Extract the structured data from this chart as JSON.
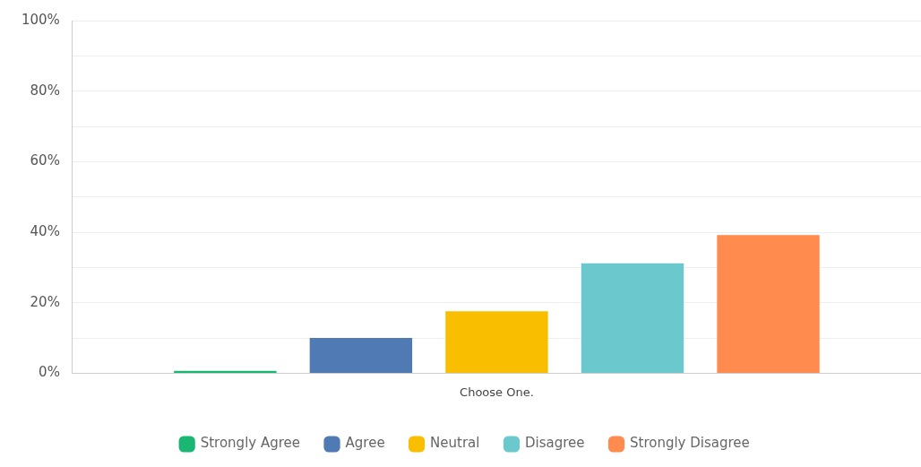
{
  "chart_data": {
    "type": "bar",
    "categories": [
      "Choose One."
    ],
    "series": [
      {
        "name": "Strongly Agree",
        "color": "#19b772",
        "values": [
          0.7
        ]
      },
      {
        "name": "Agree",
        "color": "#4f7ab3",
        "values": [
          10
        ]
      },
      {
        "name": "Neutral",
        "color": "#f9be00",
        "values": [
          17.6
        ]
      },
      {
        "name": "Disagree",
        "color": "#6bc8cd",
        "values": [
          31.2
        ]
      },
      {
        "name": "Strongly Disagree",
        "color": "#ff8b4f",
        "values": [
          39.2
        ]
      }
    ],
    "ylim": [
      0,
      100
    ],
    "yticks": [
      {
        "value": 0,
        "label": "0%"
      },
      {
        "value": 10,
        "label": null
      },
      {
        "value": 20,
        "label": "20%"
      },
      {
        "value": 30,
        "label": null
      },
      {
        "value": 40,
        "label": "40%"
      },
      {
        "value": 50,
        "label": null
      },
      {
        "value": 60,
        "label": "60%"
      },
      {
        "value": 70,
        "label": null
      },
      {
        "value": 80,
        "label": "80%"
      },
      {
        "value": 90,
        "label": null
      },
      {
        "value": 100,
        "label": "100%"
      }
    ],
    "grid": "y",
    "legend": "bottom"
  }
}
